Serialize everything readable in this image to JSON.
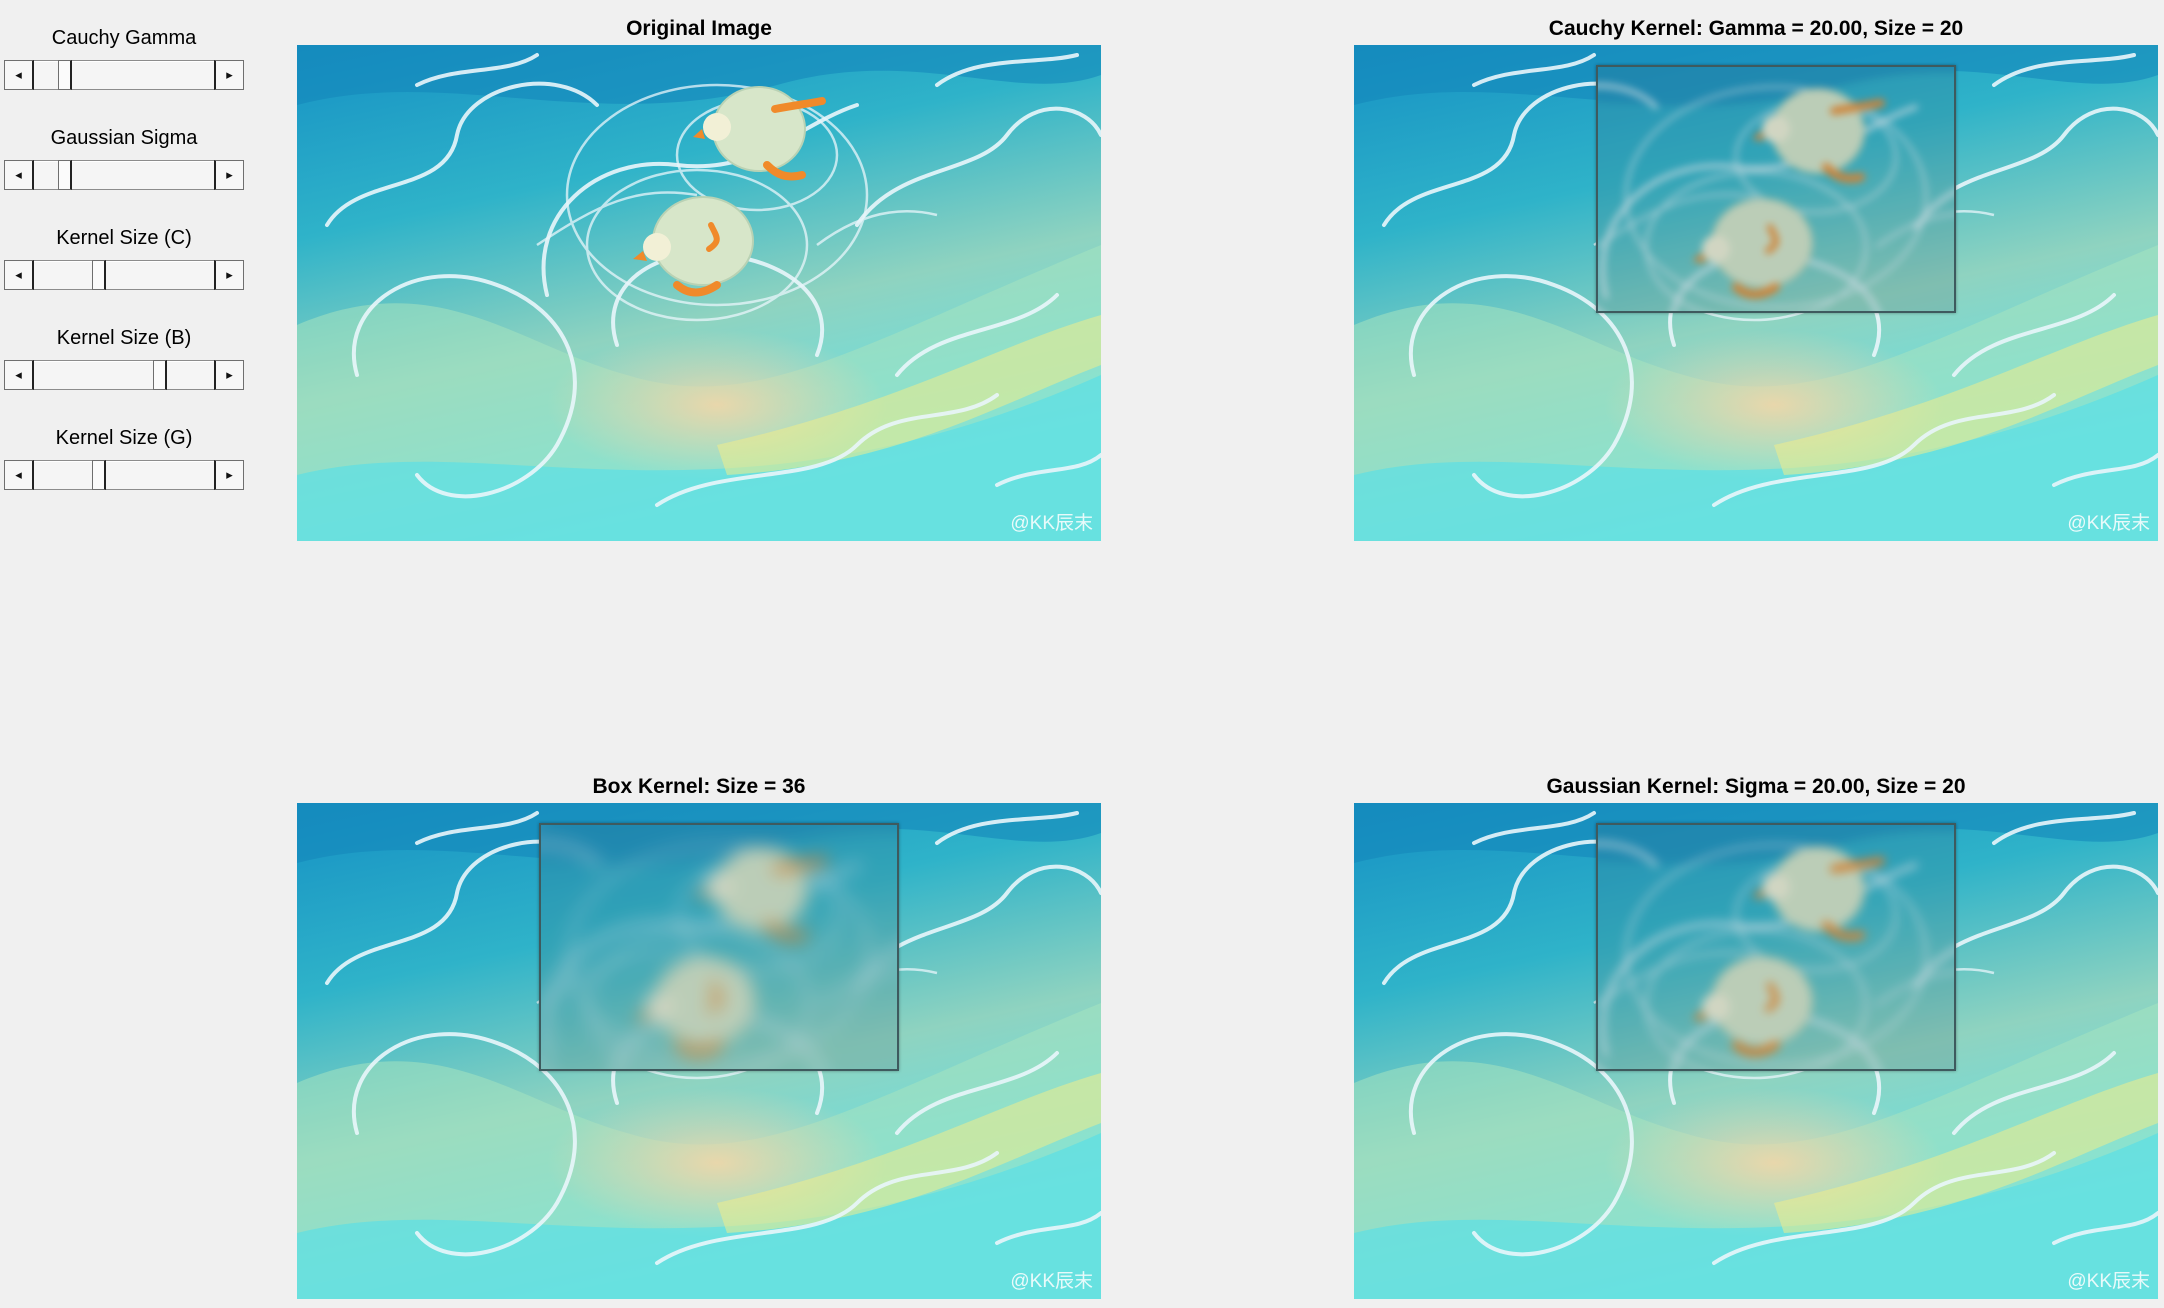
{
  "sliders": [
    {
      "label": "Cauchy Gamma",
      "value": 0.17
    },
    {
      "label": "Gaussian Sigma",
      "value": 0.17
    },
    {
      "label": "Kernel Size (C)",
      "value": 0.36
    },
    {
      "label": "Kernel Size (B)",
      "value": 0.7
    },
    {
      "label": "Kernel Size (G)",
      "value": 0.36
    }
  ],
  "panels": {
    "original": {
      "title": "Original Image"
    },
    "cauchy": {
      "title": "Cauchy Kernel: Gamma = 20.00, Size = 20"
    },
    "box": {
      "title": "Box Kernel: Size = 36"
    },
    "gaussian": {
      "title": "Gaussian Kernel: Sigma = 20.00, Size = 20"
    }
  },
  "watermark": "@KK辰末",
  "colors": {
    "background": "#f0f0f0",
    "water_deep": "#1691c4",
    "water_mid": "#2fb3c9",
    "sand": "#f2d6a8",
    "foam": "#e9f6fb",
    "duck_body": "#d7e6c9",
    "duck_feet": "#f08a2a"
  }
}
